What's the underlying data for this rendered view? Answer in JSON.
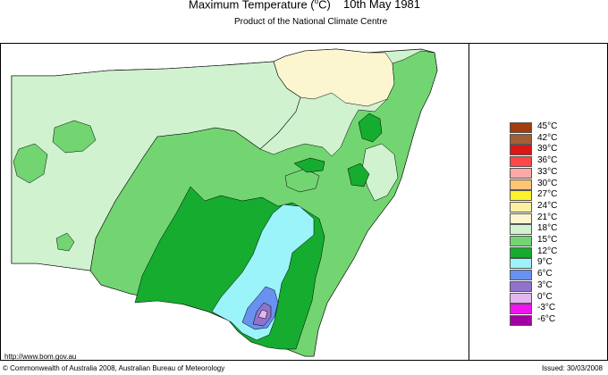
{
  "header": {
    "title": "Maximum Temperature (",
    "title_unit_sup": "o",
    "title_unit_end": "C)",
    "date": "10th May 1981",
    "subtitle": "Product of the National Climate Centre"
  },
  "map": {
    "region": "New South Wales",
    "zones": [
      {
        "name": "21-24",
        "color": "#fbf6cf"
      },
      {
        "name": "18-21",
        "color": "#d0f2cf"
      },
      {
        "name": "15-18",
        "color": "#72d572"
      },
      {
        "name": "12-15",
        "color": "#15ac2f"
      },
      {
        "name": "9-12",
        "color": "#9bf4fa"
      },
      {
        "name": "6-9",
        "color": "#6891f0"
      },
      {
        "name": "3-6",
        "color": "#8f73cd"
      },
      {
        "name": "0-3",
        "color": "#e4b6f0"
      }
    ]
  },
  "legend": {
    "entries": [
      {
        "label": "45°C",
        "color": "#a23d0d"
      },
      {
        "label": "42°C",
        "color": "#a45e36"
      },
      {
        "label": "39°C",
        "color": "#dc1515"
      },
      {
        "label": "36°C",
        "color": "#ff4747"
      },
      {
        "label": "33°C",
        "color": "#ffa8a8"
      },
      {
        "label": "30°C",
        "color": "#ffc474"
      },
      {
        "label": "27°C",
        "color": "#fff12c"
      },
      {
        "label": "24°C",
        "color": "#fff0a0"
      },
      {
        "label": "21°C",
        "color": "#fbf6cf"
      },
      {
        "label": "18°C",
        "color": "#d0f2cf"
      },
      {
        "label": "15°C",
        "color": "#72d572"
      },
      {
        "label": "12°C",
        "color": "#15ac2f"
      },
      {
        "label": "9°C",
        "color": "#9bf4fa"
      },
      {
        "label": "6°C",
        "color": "#6891f0"
      },
      {
        "label": "3°C",
        "color": "#8f73cd"
      },
      {
        "label": "0°C",
        "color": "#e4b6f0"
      },
      {
        "label": "-3°C",
        "color": "#f213f2"
      },
      {
        "label": "-6°C",
        "color": "#a200a2"
      }
    ]
  },
  "footer": {
    "url": "http://www.bom.gov.au",
    "copyright": "© Commonwealth of Australia 2008, Australian Bureau of Meteorology",
    "issued": "Issued: 30/03/2008"
  }
}
